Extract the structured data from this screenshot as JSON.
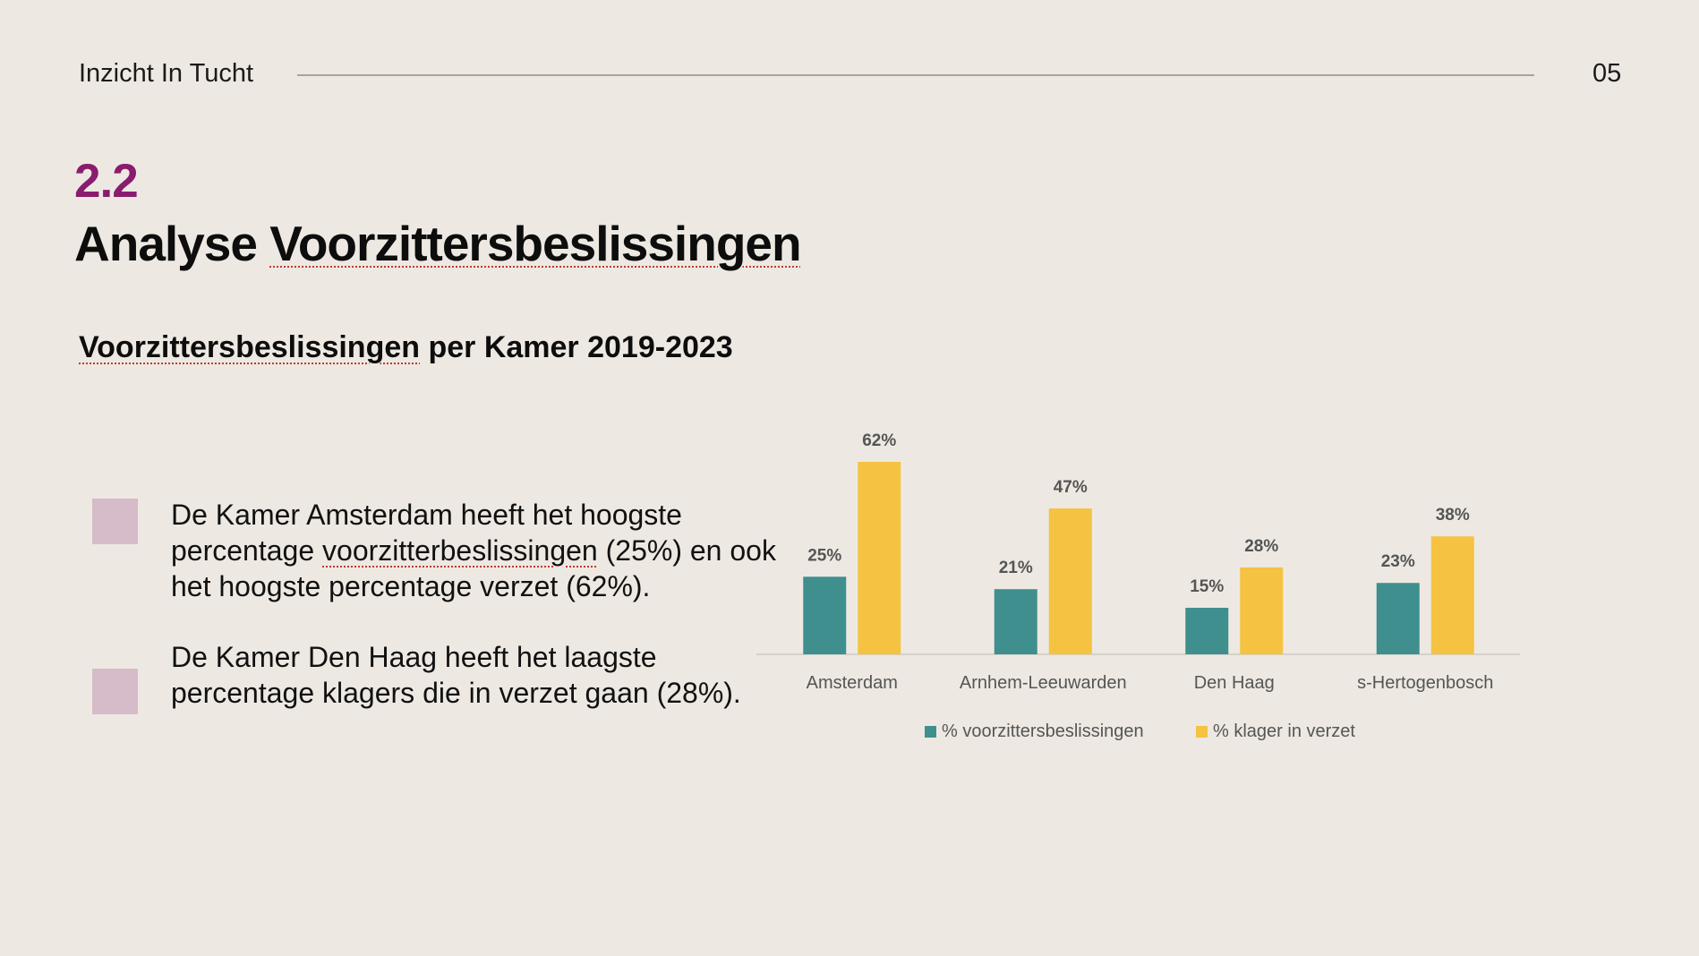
{
  "header": {
    "brand": "Inzicht In Tucht",
    "page_number": "05"
  },
  "section": {
    "number": "2.2",
    "title_part1": "Analyse ",
    "title_part2": "Voorzittersbeslissingen"
  },
  "chart_heading": {
    "part1": "Voorzittersbeslissingen",
    "part2": " per Kamer 2019-2023"
  },
  "bullets": [
    {
      "text_a": "De Kamer Amsterdam heeft het hoogste percentage ",
      "text_b": "voorzitterbeslissingen",
      "text_c": " (25%) en ook het hoogste percentage verzet (62%)."
    },
    {
      "text": "De Kamer Den Haag heeft het laagste percentage klagers die in verzet gaan (28%)."
    }
  ],
  "colors": {
    "teal": "#3f8f8f",
    "gold": "#f5c242",
    "accent": "#8a1c6e",
    "bullet": "#d5bcc8"
  },
  "chart_data": {
    "type": "bar",
    "categories": [
      "Amsterdam",
      "Arnhem-Leeuwarden",
      "Den Haag",
      "s-Hertogenbosch"
    ],
    "series": [
      {
        "name": "% voorzittersbeslissingen",
        "values": [
          25,
          21,
          15,
          23
        ],
        "labels": [
          "25%",
          "21%",
          "15%",
          "23%"
        ],
        "color": "#3f8f8f"
      },
      {
        "name": "% klager in verzet",
        "values": [
          62,
          47,
          28,
          38
        ],
        "labels": [
          "62%",
          "47%",
          "28%",
          "38%"
        ],
        "color": "#f5c242"
      }
    ],
    "ylim": [
      0,
      62
    ],
    "grid": false,
    "legend_position": "bottom"
  }
}
